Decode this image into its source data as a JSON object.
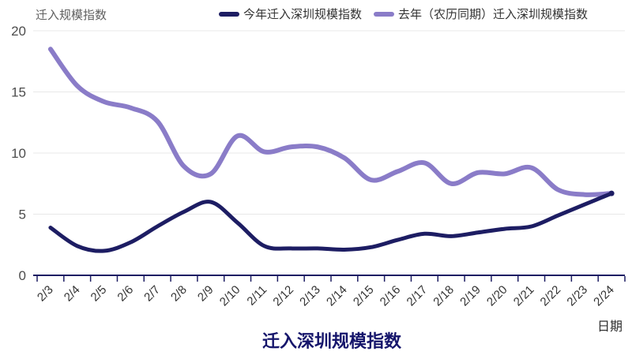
{
  "y_axis_name": "迁入规模指数",
  "x_axis_name": "日期",
  "title": "迁入深圳规模指数",
  "colors": {
    "this_year": "#1d1d63",
    "last_year": "#8a7cc8",
    "title": "#15156b",
    "axis": "#1d1d63",
    "grid": "#e8e8e8",
    "tick_label": "#4d4d4d",
    "x_label": "#333333"
  },
  "chart_data": {
    "type": "line",
    "smooth": true,
    "grid": true,
    "legend_position": "top",
    "title": "迁入深圳规模指数",
    "xlabel": "日期",
    "ylabel": "迁入规模指数",
    "ylim": [
      0,
      20
    ],
    "y_ticks": [
      0,
      5,
      10,
      15,
      20
    ],
    "categories": [
      "2/3",
      "2/4",
      "2/5",
      "2/6",
      "2/7",
      "2/8",
      "2/9",
      "2/10",
      "2/11",
      "2/12",
      "2/13",
      "2/14",
      "2/15",
      "2/16",
      "2/17",
      "2/18",
      "2/19",
      "2/20",
      "2/21",
      "2/22",
      "2/23",
      "2/24"
    ],
    "series": [
      {
        "name": "今年迁入深圳规模指数",
        "color": "#1d1d63",
        "values": [
          3.9,
          2.4,
          2.0,
          2.7,
          4.0,
          5.2,
          6.0,
          4.3,
          2.4,
          2.2,
          2.2,
          2.1,
          2.3,
          2.9,
          3.4,
          3.2,
          3.5,
          3.8,
          4.0,
          4.9,
          5.8,
          6.7
        ]
      },
      {
        "name": "去年（农历同期）迁入深圳规模指数",
        "color": "#8a7cc8",
        "values": [
          18.5,
          15.5,
          14.2,
          13.7,
          12.6,
          8.9,
          8.3,
          11.4,
          10.1,
          10.5,
          10.5,
          9.6,
          7.8,
          8.5,
          9.2,
          7.5,
          8.4,
          8.3,
          8.8,
          7.0,
          6.6,
          6.7
        ]
      }
    ]
  }
}
